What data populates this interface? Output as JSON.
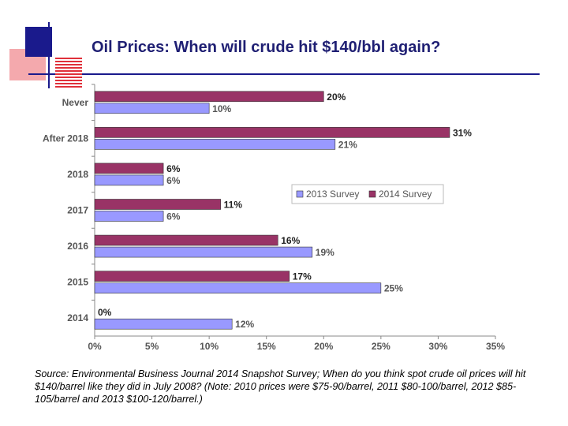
{
  "slide": {
    "title": "Oil Prices: When will crude hit $140/bbl again?",
    "source": "Source: Environmental Business Journal 2014 Snapshot Survey; When do you think spot crude oil prices will hit $140/barrel like they did in July 2008? (Note: 2010 prices were $75-90/barrel, 2011 $80-100/barrel, 2012 $85-105/barrel and 2013 $100-120/barrel.)"
  },
  "colors": {
    "series_2013": "#9999ff",
    "series_2014": "#993366",
    "title": "#1f1f73",
    "deco_blue": "#1a1a8c",
    "deco_red": "#e0303a",
    "deco_pink": "#f4a9ad"
  },
  "chart_data": {
    "type": "bar",
    "orientation": "horizontal",
    "categories": [
      "Never",
      "After 2018",
      "2018",
      "2017",
      "2016",
      "2015",
      "2014"
    ],
    "series": [
      {
        "name": "2014 Survey",
        "values": [
          20,
          31,
          6,
          11,
          16,
          17,
          0
        ],
        "labels": [
          "20%",
          "31%",
          "6%",
          "11%",
          "16%",
          "17%",
          "0%"
        ]
      },
      {
        "name": "2013 Survey",
        "values": [
          10,
          21,
          6,
          6,
          19,
          25,
          12
        ],
        "labels": [
          "10%",
          "21%",
          "6%",
          "6%",
          "19%",
          "25%",
          "12%"
        ]
      }
    ],
    "xlim": [
      0,
      35
    ],
    "xticks": [
      "0%",
      "5%",
      "10%",
      "15%",
      "20%",
      "25%",
      "30%",
      "35%"
    ],
    "legend": {
      "position": "right",
      "entries": [
        "2013 Survey",
        "2014 Survey"
      ]
    },
    "grid": false
  }
}
